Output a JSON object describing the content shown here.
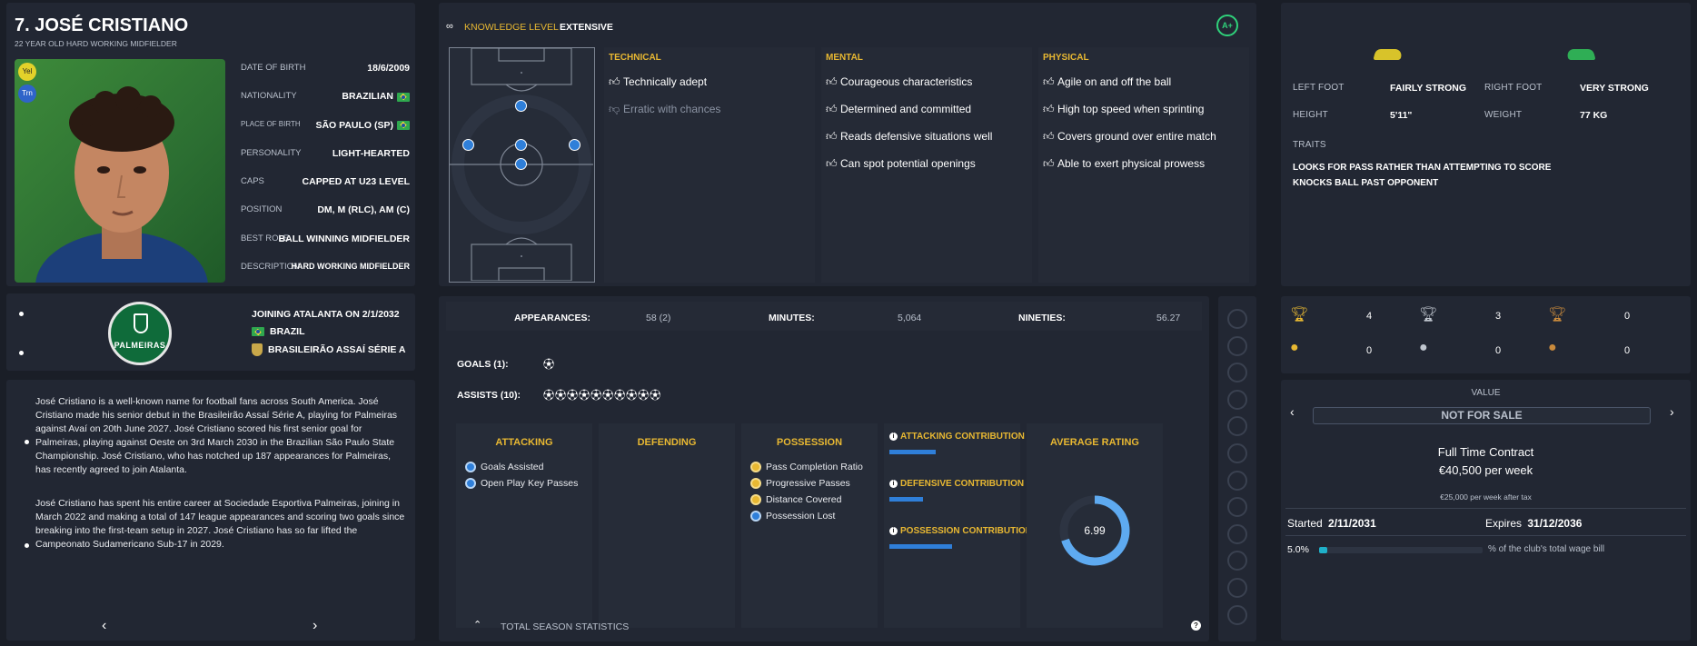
{
  "player": {
    "name": "7. JOSÉ CRISTIANO",
    "subtitle": "22 YEAR OLD HARD WORKING MIDFIELDER",
    "badge_yel": "Yel",
    "badge_trn": "Trn",
    "details": [
      {
        "label": "DATE OF BIRTH",
        "value": "18/6/2009",
        "flag": false
      },
      {
        "label": "NATIONALITY",
        "value": "BRAZILIAN",
        "flag": true
      },
      {
        "label": "PLACE OF BIRTH",
        "value": "SÃO PAULO (SP)",
        "flag": true
      },
      {
        "label": "PERSONALITY",
        "value": "LIGHT-HEARTED",
        "flag": false
      },
      {
        "label": "CAPS",
        "value": "CAPPED AT U23 LEVEL",
        "flag": false
      },
      {
        "label": "POSITION",
        "value": "DM, M (RLC), AM (C)",
        "flag": false
      },
      {
        "label": "BEST ROLE",
        "value": "BALL WINNING MIDFIELDER",
        "flag": false
      },
      {
        "label": "DESCRIPTION",
        "value": "HARD WORKING MIDFIELDER",
        "flag": false
      }
    ]
  },
  "club": {
    "logo_text": "PALMEIRAS",
    "joining": "JOINING ATALANTA ON 2/1/2032",
    "country": "BRAZIL",
    "league": "BRASILEIRÃO ASSAÍ SÉRIE A"
  },
  "bio": {
    "para1": "José Cristiano is a well-known name for football fans across South America. José Cristiano made his senior debut in the Brasileirão Assaí Série A, playing for Palmeiras against Avaí on 20th June 2027. José Cristiano scored his first senior goal for Palmeiras, playing against Oeste on 3rd March 2030 in the Brazilian São Paulo State Championship. José Cristiano, who has notched up 187 appearances for Palmeiras, has recently agreed to join Atalanta.",
    "para2": "José Cristiano has spent his entire career at Sociedade Esportiva Palmeiras, joining in March 2022 and making a total of 147 league appearances and scoring two goals since breaking into the first-team setup in 2027. José Cristiano has so far lifted the Campeonato Sudamericano Sub-17 in 2029.",
    "prev": "‹",
    "next": "›"
  },
  "knowledge": {
    "label": "KNOWLEDGE LEVEL",
    "value": "EXTENSIVE",
    "grade": "A+"
  },
  "attributes": {
    "technical": {
      "title": "TECHNICAL",
      "items": [
        {
          "text": "Technically adept",
          "positive": true
        },
        {
          "text": "Erratic with chances",
          "positive": false
        }
      ]
    },
    "mental": {
      "title": "MENTAL",
      "items": [
        {
          "text": "Courageous characteristics",
          "positive": true
        },
        {
          "text": "Determined and committed",
          "positive": true
        },
        {
          "text": "Reads defensive situations well",
          "positive": true
        },
        {
          "text": "Can spot potential openings",
          "positive": true
        }
      ]
    },
    "physical": {
      "title": "PHYSICAL",
      "items": [
        {
          "text": "Agile on and off the ball",
          "positive": true
        },
        {
          "text": "High top speed when sprinting",
          "positive": true
        },
        {
          "text": "Covers ground over entire match",
          "positive": true
        },
        {
          "text": "Able to exert physical prowess",
          "positive": true
        }
      ]
    }
  },
  "physical_info": {
    "left_foot_label": "LEFT FOOT",
    "left_foot": "FAIRLY STRONG",
    "right_foot_label": "RIGHT FOOT",
    "right_foot": "VERY STRONG",
    "height_label": "HEIGHT",
    "height": "5'11\"",
    "weight_label": "WEIGHT",
    "weight": "77 KG",
    "traits_label": "TRAITS",
    "traits": [
      "LOOKS FOR PASS RATHER THAN ATTEMPTING TO SCORE",
      "KNOCKS BALL PAST OPPONENT"
    ]
  },
  "stats": {
    "appearances_label": "APPEARANCES:",
    "appearances": "58 (2)",
    "minutes_label": "MINUTES:",
    "minutes": "5,064",
    "nineties_label": "NINETIES:",
    "nineties": "56.27",
    "goals_label": "GOALS (1):",
    "goals_count": 1,
    "assists_label": "ASSISTS (10):",
    "assists_count": 10,
    "attacking_title": "ATTACKING",
    "attacking": [
      "Goals Assisted",
      "Open Play Key Passes"
    ],
    "defending_title": "DEFENDING",
    "possession_title": "POSSESSION",
    "possession": [
      {
        "text": "Pass Completion Ratio",
        "gold": true
      },
      {
        "text": "Progressive Passes",
        "gold": true
      },
      {
        "text": "Distance Covered",
        "gold": true
      },
      {
        "text": "Possession Lost",
        "gold": false
      }
    ],
    "contrib": [
      {
        "label": "ATTACKING CONTRIBUTION",
        "level": 0.37
      },
      {
        "label": "DEFENSIVE CONTRIBUTION",
        "level": 0.27
      },
      {
        "label": "POSSESSION CONTRIBUTION",
        "level": 0.5
      }
    ],
    "avg_title": "AVERAGE RATING",
    "avg_rating": "6.99",
    "avg_fraction": 0.7,
    "footer": "TOTAL SEASON STATISTICS"
  },
  "trophies": [
    {
      "type": "gold-trophy",
      "count": "4"
    },
    {
      "type": "silver-trophy",
      "count": "3"
    },
    {
      "type": "bronze-trophy",
      "count": "0"
    },
    {
      "type": "gold-medal",
      "count": "0"
    },
    {
      "type": "silver-medal",
      "count": "0"
    },
    {
      "type": "bronze-medal",
      "count": "0"
    }
  ],
  "contract": {
    "value_label": "VALUE",
    "value": "NOT FOR SALE",
    "type": "Full Time Contract",
    "wage": "€40,500 per week",
    "after_tax": "€25,000 per week after tax",
    "started_label": "Started",
    "started": "2/11/2031",
    "expires_label": "Expires",
    "expires": "31/12/2036",
    "wage_pct": "5.0%",
    "wage_fraction": 0.05,
    "wage_bill_text": "% of the club's total wage bill"
  },
  "colors": {
    "accent_gold": "#e8b832",
    "accent_blue": "#2f7fd9",
    "panel": "#222733",
    "grade_green": "#2fd17a"
  }
}
